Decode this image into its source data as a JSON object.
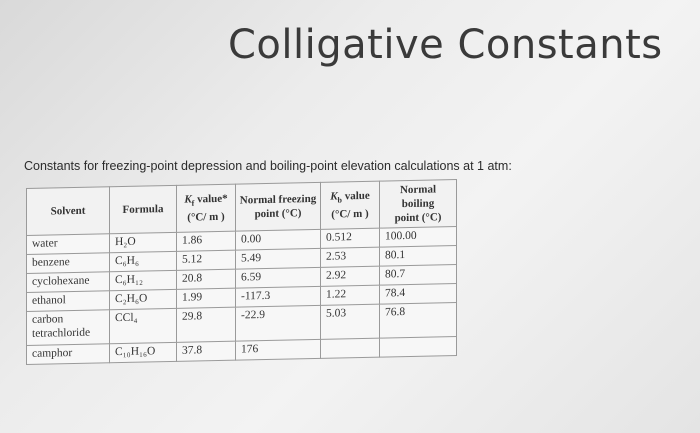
{
  "title": "Colligative Constants",
  "subtitle": "Constants for freezing-point depression and boiling-point elevation calculations at 1 atm:",
  "table": {
    "headers": {
      "solvent": "Solvent",
      "formula": "Formula",
      "kf_symbol": "K",
      "kf_sub": "f",
      "kf_rest": " value*",
      "kf_unit": "(°C/ m )",
      "fp_line1": "Normal freezing",
      "fp_line2": "point (°C)",
      "kb_symbol": "K",
      "kb_sub": "b",
      "kb_rest": " value",
      "kb_unit": "(°C/ m )",
      "bp_line1": "Normal boiling",
      "bp_line2": "point (°C)"
    },
    "rows": [
      {
        "solvent": "water",
        "formula": "H₂O",
        "kf": "1.86",
        "fp": "0.00",
        "kb": "0.512",
        "bp": "100.00"
      },
      {
        "solvent": "benzene",
        "formula": "C₆H₆",
        "kf": "5.12",
        "fp": "5.49",
        "kb": "2.53",
        "bp": "80.1"
      },
      {
        "solvent": "cyclohexane",
        "formula": "C₆H₁₂",
        "kf": "20.8",
        "fp": "6.59",
        "kb": "2.92",
        "bp": "80.7"
      },
      {
        "solvent": "ethanol",
        "formula": "C₂H₆O",
        "kf": "1.99",
        "fp": "-117.3",
        "kb": "1.22",
        "bp": "78.4"
      },
      {
        "solvent": "carbon tetrachloride",
        "formula": "CCl₄",
        "kf": "29.8",
        "fp": "-22.9",
        "kb": "5.03",
        "bp": "76.8"
      },
      {
        "solvent": "camphor",
        "formula": "C₁₀H₁₆O",
        "kf": "37.8",
        "fp": "176",
        "kb": "",
        "bp": ""
      }
    ]
  }
}
